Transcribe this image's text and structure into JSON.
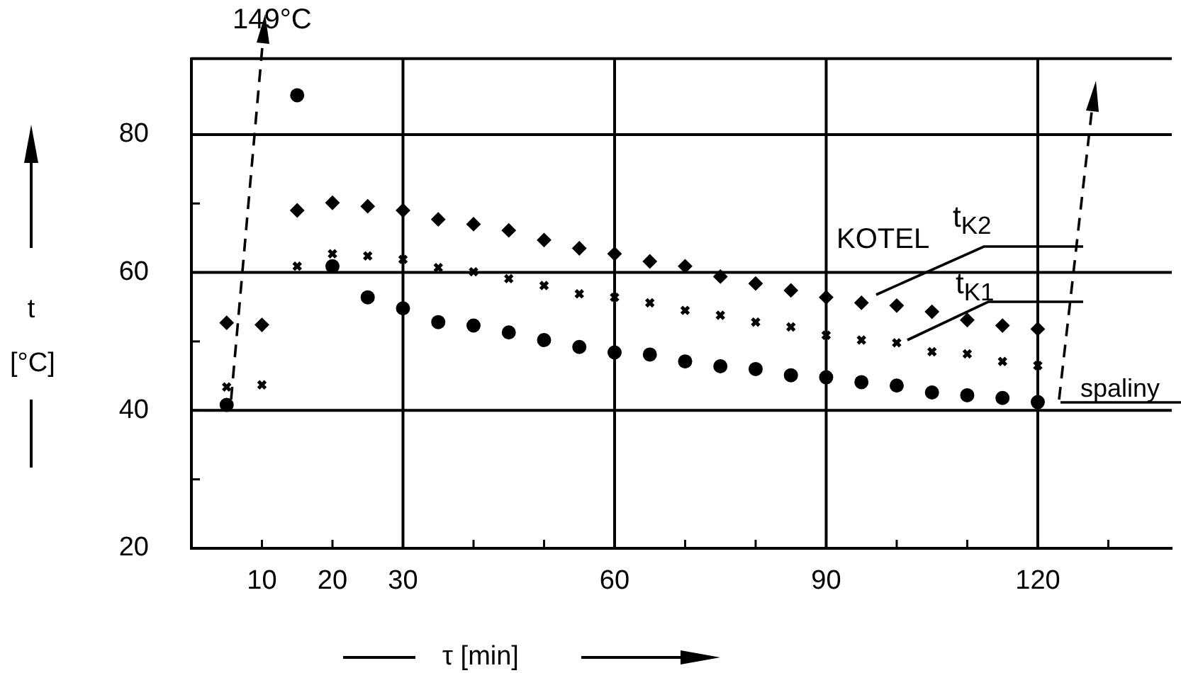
{
  "chart_data": {
    "type": "scatter",
    "xlabel": "τ [min]",
    "ylabel": "t [°C]",
    "annotations": [
      "149°C",
      "KOTEL"
    ],
    "x": [
      5,
      10,
      15,
      20,
      25,
      30,
      35,
      40,
      45,
      50,
      55,
      60,
      65,
      70,
      75,
      80,
      85,
      90,
      95,
      100,
      105,
      110,
      115,
      120
    ],
    "series": [
      {
        "name": "t$_{K2}$",
        "color": "#000000",
        "marker": "diamond",
        "values": [
          52.7,
          52.4,
          69.0,
          70.1,
          69.6,
          69.0,
          67.7,
          67.0,
          66.1,
          64.7,
          63.5,
          62.7,
          61.6,
          60.9,
          59.4,
          58.4,
          57.4,
          56.4,
          55.6,
          55.2,
          54.3,
          53.1,
          52.3,
          51.8
        ]
      },
      {
        "name": "t$_{K1}$",
        "color": "#000000",
        "marker": "cross",
        "values": [
          43.4,
          43.7,
          60.9,
          62.7,
          62.4,
          61.9,
          60.7,
          60.1,
          59.1,
          58.1,
          56.9,
          56.4,
          55.6,
          54.5,
          53.8,
          52.8,
          52.1,
          50.9,
          50.2,
          49.8,
          48.5,
          48.2,
          47.1,
          46.5
        ]
      },
      {
        "name": "spaliny",
        "color": "#000000",
        "marker": "circle",
        "values": [
          40.8,
          null,
          85.7,
          60.9,
          56.4,
          54.8,
          52.8,
          52.3,
          51.3,
          50.2,
          49.2,
          48.4,
          48.1,
          47.1,
          46.4,
          46.0,
          45.1,
          44.8,
          44.1,
          43.6,
          42.6,
          42.2,
          41.8,
          41.2
        ]
      }
    ],
    "xlim": [
      0,
      139
    ],
    "xticks": [
      10,
      20,
      30,
      {
        "value": 40,
        "label": null
      },
      {
        "value": 50,
        "label": null
      },
      60,
      {
        "value": 70,
        "label": null
      },
      {
        "value": 80,
        "label": null
      },
      90,
      {
        "value": 100,
        "label": null
      },
      {
        "value": 110,
        "label": null
      },
      120,
      {
        "value": 130,
        "label": null
      }
    ],
    "ylim": [
      20,
      91
    ],
    "yticks": [
      20,
      {
        "value": 30,
        "label": null
      },
      40,
      {
        "value": 50,
        "label": null
      },
      60,
      {
        "value": 70,
        "label": null
      },
      80
    ],
    "ref_lines": [
      {
        "axis": "x",
        "value": 30,
        "color": "#000000"
      },
      {
        "axis": "x",
        "value": 60,
        "color": "#000000"
      },
      {
        "axis": "x",
        "value": 90,
        "color": "#000000"
      },
      {
        "axis": "x",
        "value": 120,
        "color": "#000000"
      },
      {
        "axis": "y",
        "value": 40,
        "color": "#000000"
      },
      {
        "axis": "y",
        "value": 60,
        "color": "#000000"
      },
      {
        "axis": "y",
        "value": 80,
        "color": "#000000"
      }
    ],
    "legend": false
  }
}
